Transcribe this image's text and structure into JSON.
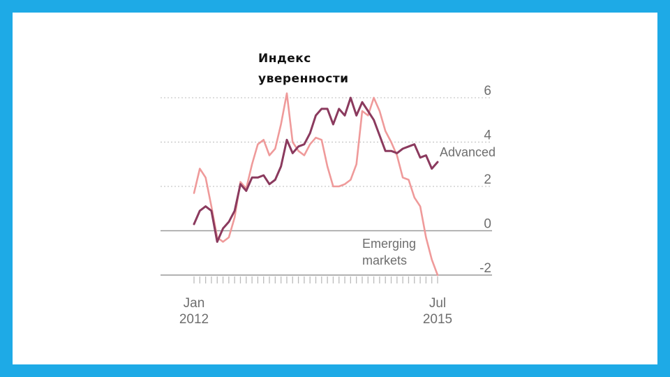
{
  "chart_data": {
    "type": "line",
    "title_lines": [
      "Индекс",
      "уверенности"
    ],
    "ylim": [
      -2,
      6
    ],
    "y_ticks": [
      "6",
      "4",
      "2",
      "0",
      "-2"
    ],
    "x_tick_labels": [
      {
        "month": "Jan",
        "year": "2012"
      },
      {
        "month": "Jul",
        "year": "2015"
      }
    ],
    "grid": "horizontal dotted",
    "colors": {
      "advanced": "#8b3a5e",
      "emerging": "#ef9a9a",
      "grid": "#bbbbbb",
      "axis": "#999999",
      "text": "#6e6e6e"
    },
    "series": [
      {
        "name": "Advanced",
        "key": "advanced",
        "values": [
          0.3,
          0.9,
          1.1,
          0.9,
          -0.5,
          0.1,
          0.4,
          0.9,
          2.1,
          1.8,
          2.4,
          2.4,
          2.5,
          2.1,
          2.3,
          2.9,
          4.1,
          3.5,
          3.8,
          3.9,
          4.4,
          5.2,
          5.5,
          5.5,
          4.8,
          5.5,
          5.2,
          6.0,
          5.2,
          5.8,
          5.4,
          5.0,
          4.3,
          3.6,
          3.6,
          3.5,
          3.7,
          3.8,
          3.9,
          3.3,
          3.4,
          2.8,
          3.1
        ]
      },
      {
        "name": "Emerging markets",
        "key": "emerging",
        "label_lines": [
          "Emerging",
          "markets"
        ],
        "values": [
          1.7,
          2.8,
          2.4,
          1.1,
          -0.3,
          -0.5,
          -0.3,
          0.6,
          2.2,
          1.9,
          3.0,
          3.9,
          4.1,
          3.4,
          3.7,
          4.8,
          6.2,
          4.0,
          3.6,
          3.4,
          3.9,
          4.2,
          4.1,
          2.9,
          2.0,
          2.0,
          2.1,
          2.3,
          3.0,
          5.4,
          5.2,
          6.0,
          5.4,
          4.5,
          4.0,
          3.4,
          2.4,
          2.3,
          1.5,
          1.1,
          -0.3,
          -1.3,
          -2.0
        ]
      }
    ]
  }
}
